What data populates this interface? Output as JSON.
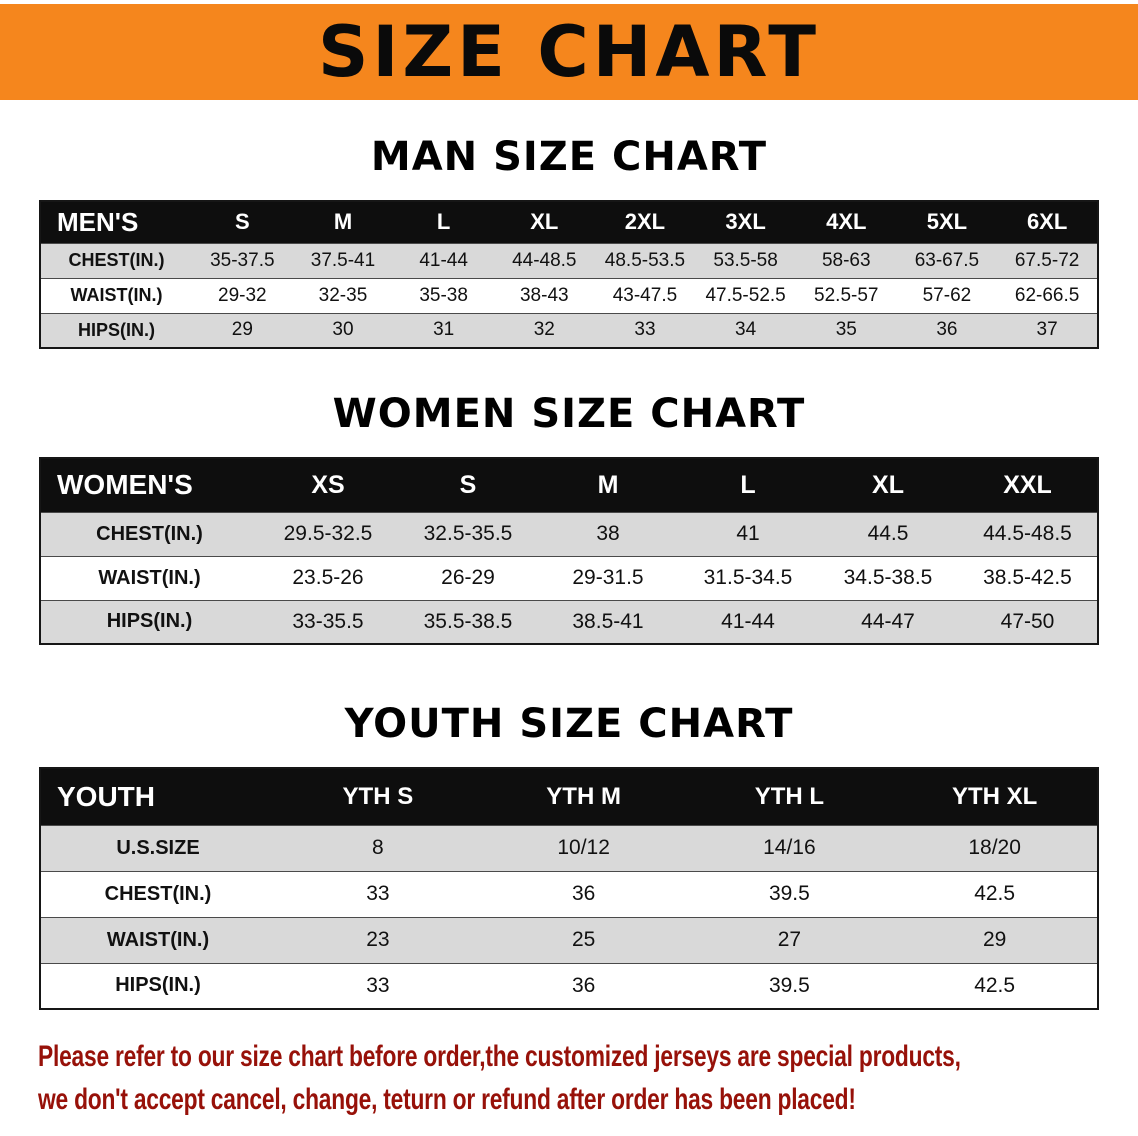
{
  "banner": {
    "title": "SIZE CHART"
  },
  "sections": [
    {
      "title": "MAN SIZE CHART",
      "table": {
        "header": [
          "MEN'S",
          "S",
          "M",
          "L",
          "XL",
          "2XL",
          "3XL",
          "4XL",
          "5XL",
          "6XL"
        ],
        "rows": [
          [
            "CHEST(IN.)",
            "35-37.5",
            "37.5-41",
            "41-44",
            "44-48.5",
            "48.5-53.5",
            "53.5-58",
            "58-63",
            "63-67.5",
            "67.5-72"
          ],
          [
            "WAIST(IN.)",
            "29-32",
            "32-35",
            "35-38",
            "38-43",
            "43-47.5",
            "47.5-52.5",
            "52.5-57",
            "57-62",
            "62-66.5"
          ],
          [
            "HIPS(IN.)",
            "29",
            "30",
            "31",
            "32",
            "33",
            "34",
            "35",
            "36",
            "37"
          ]
        ]
      }
    },
    {
      "title": "WOMEN SIZE CHART",
      "table": {
        "header": [
          "WOMEN'S",
          "XS",
          "S",
          "M",
          "L",
          "XL",
          "XXL"
        ],
        "rows": [
          [
            "CHEST(IN.)",
            "29.5-32.5",
            "32.5-35.5",
            "38",
            "41",
            "44.5",
            "44.5-48.5"
          ],
          [
            "WAIST(IN.)",
            "23.5-26",
            "26-29",
            "29-31.5",
            "31.5-34.5",
            "34.5-38.5",
            "38.5-42.5"
          ],
          [
            "HIPS(IN.)",
            "33-35.5",
            "35.5-38.5",
            "38.5-41",
            "41-44",
            "44-47",
            "47-50"
          ]
        ]
      }
    },
    {
      "title": "YOUTH SIZE CHART",
      "table": {
        "header": [
          "YOUTH",
          "YTH S",
          "YTH M",
          "YTH L",
          "YTH XL"
        ],
        "rows": [
          [
            "U.S.SIZE",
            "8",
            "10/12",
            "14/16",
            "18/20"
          ],
          [
            "CHEST(IN.)",
            "33",
            "36",
            "39.5",
            "42.5"
          ],
          [
            "WAIST(IN.)",
            "23",
            "25",
            "27",
            "29"
          ],
          [
            "HIPS(IN.)",
            "33",
            "36",
            "39.5",
            "42.5"
          ]
        ]
      }
    }
  ],
  "footer": {
    "line1": "Please refer to our size chart before order,the customized jerseys are special products,",
    "line2": "we don't accept cancel, change, teturn or refund after order has been placed!"
  },
  "colors": {
    "banner_orange": "#F5861D",
    "table_header_black": "#0e0e0e",
    "row_gray": "#d9d9d9",
    "row_white": "#ffffff",
    "notice_red": "#971109"
  }
}
